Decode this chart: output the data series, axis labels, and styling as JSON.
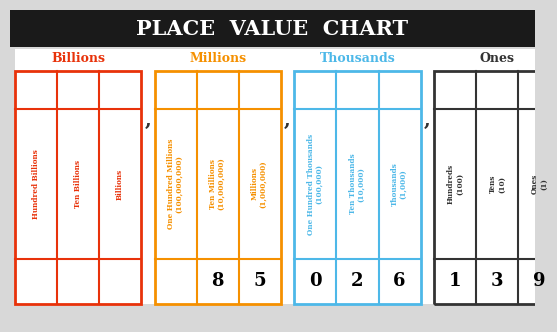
{
  "title": "PLACE  VALUE  CHART",
  "title_bg": "#1a1a1a",
  "title_color": "#ffffff",
  "title_fontsize": 15,
  "groups": [
    {
      "name": "Billions",
      "name_color": "#e8320a",
      "border_color": "#e8320a",
      "columns": [
        {
          "label": "Hundred Billions",
          "sub": "",
          "value": ""
        },
        {
          "label": "Ten Billions",
          "sub": "",
          "value": ""
        },
        {
          "label": "Billions",
          "sub": "",
          "value": ""
        }
      ]
    },
    {
      "name": "Millions",
      "name_color": "#f59000",
      "border_color": "#f59000",
      "columns": [
        {
          "label": "One Hundred Millions",
          "sub": "(100,000,000)",
          "value": ""
        },
        {
          "label": "Ten Millions",
          "sub": "(10,000,000)",
          "value": "8"
        },
        {
          "label": "Millions",
          "sub": "(1,000,000)",
          "value": "5"
        }
      ]
    },
    {
      "name": "Thousands",
      "name_color": "#4db8e8",
      "border_color": "#4db8e8",
      "columns": [
        {
          "label": "One Hundred Thousands",
          "sub": "(100,000)",
          "value": "0"
        },
        {
          "label": "Ten Thousands",
          "sub": "(10,000)",
          "value": "2"
        },
        {
          "label": "Thousands",
          "sub": "(1,000)",
          "value": "6"
        }
      ]
    },
    {
      "name": "Ones",
      "name_color": "#333333",
      "border_color": "#333333",
      "columns": [
        {
          "label": "Hundreds",
          "sub": "(100)",
          "value": "1"
        },
        {
          "label": "Tens",
          "sub": "(10)",
          "value": "3"
        },
        {
          "label": "Ones",
          "sub": "(1)",
          "value": "9"
        }
      ]
    }
  ],
  "bg_color": "#d8d8d8"
}
